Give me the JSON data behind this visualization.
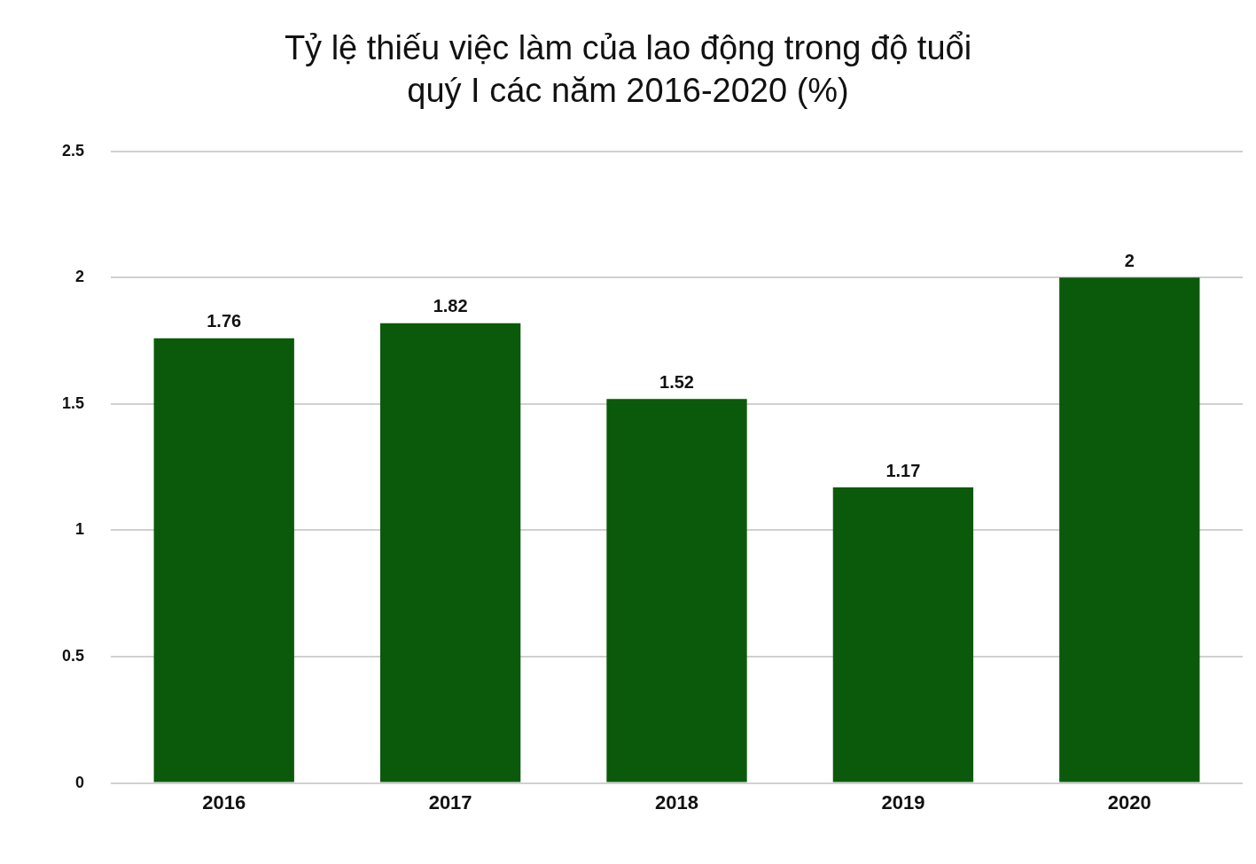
{
  "chart_data": {
    "type": "bar",
    "title": "Tỷ lệ thiếu việc làm của lao động trong độ tuổi\nquý I các năm 2016-2020 (%)",
    "categories": [
      "2016",
      "2017",
      "2018",
      "2019",
      "2020"
    ],
    "values": [
      1.76,
      1.82,
      1.52,
      1.17,
      2
    ],
    "color": "#0b5a0b",
    "ylim": [
      0,
      2.5
    ],
    "yticks": [
      0,
      0.5,
      1,
      1.5,
      2,
      2.5
    ],
    "grid": "y",
    "data_labels": true,
    "legend": false
  }
}
